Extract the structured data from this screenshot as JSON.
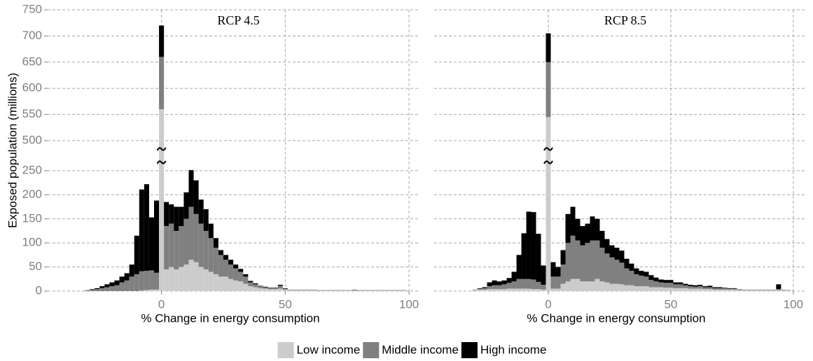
{
  "chart_data": [
    {
      "type": "histogram",
      "title": "RCP 4.5",
      "xlabel": "% Change in energy consumption",
      "ylabel": "Exposed population (millions)",
      "xlim": [
        -46,
        104.5
      ],
      "xticks": [
        0,
        50,
        100
      ],
      "ylim": [
        0,
        750
      ],
      "y_break": [
        250,
        500
      ],
      "yticks": [
        0,
        50,
        100,
        150,
        200,
        250,
        500,
        550,
        600,
        650,
        700,
        750
      ],
      "grid": true,
      "stacked": true,
      "bins": [
        -31,
        -29,
        -27,
        -25,
        -23,
        -21,
        -19,
        -17,
        -15,
        -13,
        -11,
        -9,
        -7,
        -5,
        -3,
        -1,
        1,
        3,
        5,
        7,
        9,
        11,
        13,
        15,
        17,
        19,
        21,
        23,
        25,
        27,
        29,
        31,
        33,
        35,
        37,
        39,
        41,
        43,
        45,
        47,
        49,
        51,
        53,
        55,
        57,
        59,
        61,
        63,
        65,
        67,
        69,
        71,
        73,
        75,
        77,
        79,
        81,
        83,
        85,
        87,
        89,
        91,
        93,
        95,
        97,
        99
      ],
      "series": [
        {
          "name": "Low income",
          "color": "#cccccc",
          "values": [
            0,
            0,
            0,
            0,
            0,
            0,
            0,
            0,
            0,
            0,
            0,
            1,
            2,
            3,
            3,
            560,
            45,
            50,
            45,
            50,
            55,
            65,
            60,
            50,
            45,
            40,
            35,
            30,
            30,
            25,
            22,
            20,
            15,
            10,
            8,
            6,
            5,
            4,
            4,
            5,
            3,
            2,
            2,
            2,
            2,
            2,
            2,
            1,
            1,
            1,
            1,
            1,
            1,
            1,
            1,
            1,
            1,
            1,
            1,
            1,
            1,
            1,
            1,
            1,
            1
          ]
        },
        {
          "name": "Middle income",
          "color": "#808080",
          "values": [
            2,
            3,
            4,
            6,
            8,
            10,
            12,
            18,
            22,
            30,
            35,
            40,
            40,
            40,
            35,
            100,
            90,
            90,
            80,
            85,
            95,
            110,
            100,
            90,
            80,
            70,
            55,
            45,
            35,
            30,
            25,
            20,
            15,
            8,
            6,
            4,
            3,
            2,
            2,
            6,
            2,
            1,
            1,
            1,
            1,
            1,
            1,
            1,
            1,
            1,
            1,
            1,
            1,
            1,
            2,
            1,
            1,
            1,
            1,
            1,
            1,
            1,
            1,
            1,
            1
          ]
        },
        {
          "name": "High income",
          "color": "#000000",
          "values": [
            0,
            1,
            2,
            4,
            6,
            8,
            10,
            12,
            15,
            25,
            80,
            170,
            180,
            110,
            150,
            60,
            50,
            40,
            50,
            40,
            55,
            80,
            70,
            50,
            45,
            30,
            20,
            10,
            10,
            10,
            8,
            6,
            5,
            3,
            2,
            1,
            1,
            1,
            1,
            2,
            1,
            0,
            0,
            0,
            0,
            0,
            0,
            0,
            0,
            0,
            0,
            0,
            0,
            0,
            0,
            0,
            0,
            0,
            0,
            0,
            0,
            0,
            0,
            0,
            0
          ]
        }
      ]
    },
    {
      "type": "histogram",
      "title": "RCP 8.5",
      "xlabel": "% Change in energy consumption",
      "xlim": [
        -46.6,
        104.9
      ],
      "xticks": [
        0,
        50,
        100
      ],
      "ylim": [
        0,
        750
      ],
      "y_break": [
        250,
        500
      ],
      "yticks": [
        0,
        50,
        100,
        150,
        200,
        250,
        500,
        550,
        600,
        650,
        700,
        750
      ],
      "grid": true,
      "stacked": true,
      "bins": [
        -31,
        -29,
        -27,
        -25,
        -23,
        -21,
        -19,
        -17,
        -15,
        -13,
        -11,
        -9,
        -7,
        -5,
        -3,
        -1,
        1,
        3,
        5,
        7,
        9,
        11,
        13,
        15,
        17,
        19,
        21,
        23,
        25,
        27,
        29,
        31,
        33,
        35,
        37,
        39,
        41,
        43,
        45,
        47,
        49,
        51,
        53,
        55,
        57,
        59,
        61,
        63,
        65,
        67,
        69,
        71,
        73,
        75,
        77,
        79,
        81,
        83,
        85,
        87,
        89,
        91,
        93,
        95,
        97,
        99
      ],
      "series": [
        {
          "name": "Low income",
          "color": "#cccccc",
          "values": [
            2,
            3,
            3,
            4,
            4,
            4,
            4,
            5,
            5,
            5,
            5,
            5,
            4,
            4,
            3,
            545,
            5,
            5,
            15,
            20,
            25,
            25,
            20,
            20,
            20,
            25,
            20,
            18,
            15,
            15,
            14,
            12,
            12,
            10,
            10,
            10,
            8,
            8,
            8,
            7,
            7,
            6,
            6,
            6,
            5,
            5,
            5,
            4,
            4,
            3,
            3,
            3,
            3,
            3,
            2,
            2,
            2,
            2,
            2,
            2,
            2,
            2,
            2,
            2,
            1
          ]
        },
        {
          "name": "Middle income",
          "color": "#808080",
          "values": [
            1,
            2,
            3,
            6,
            8,
            8,
            10,
            12,
            15,
            20,
            20,
            20,
            20,
            15,
            10,
            105,
            25,
            25,
            40,
            80,
            90,
            80,
            75,
            80,
            85,
            80,
            70,
            60,
            55,
            50,
            45,
            35,
            30,
            25,
            22,
            20,
            15,
            12,
            10,
            10,
            10,
            8,
            8,
            6,
            5,
            4,
            5,
            4,
            4,
            3,
            3,
            3,
            2,
            2,
            2,
            1,
            1,
            1,
            1,
            1,
            1,
            1,
            2,
            1,
            1
          ]
        },
        {
          "name": "High income",
          "color": "#000000",
          "values": [
            0,
            1,
            2,
            8,
            10,
            8,
            8,
            10,
            20,
            50,
            95,
            140,
            140,
            100,
            40,
            55,
            30,
            20,
            30,
            60,
            60,
            45,
            40,
            40,
            50,
            45,
            35,
            30,
            25,
            25,
            25,
            20,
            15,
            12,
            10,
            10,
            10,
            8,
            6,
            6,
            6,
            4,
            4,
            3,
            3,
            3,
            3,
            2,
            3,
            2,
            2,
            1,
            1,
            1,
            0,
            0,
            0,
            0,
            0,
            0,
            0,
            0,
            10,
            0,
            0
          ]
        }
      ]
    }
  ]
}
